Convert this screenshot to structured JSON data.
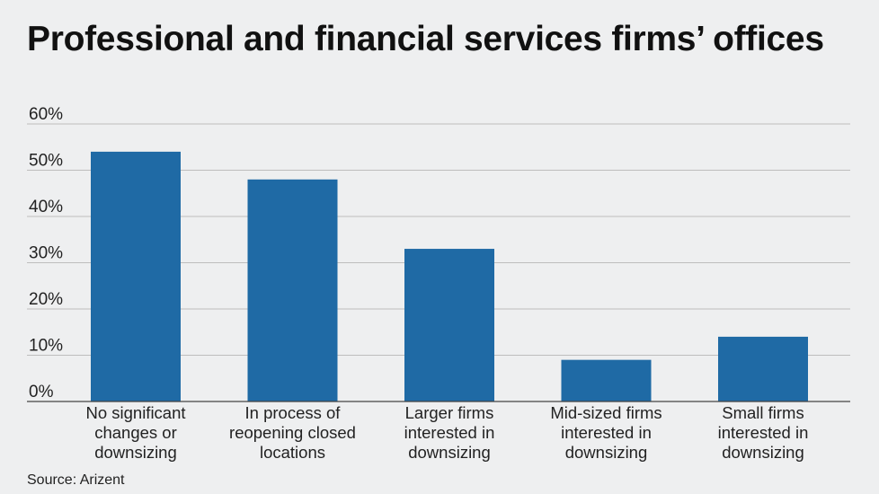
{
  "title": "Professional and financial services firms’ offices",
  "source": "Source: Arizent",
  "colors": {
    "bar": "#1f6aa5",
    "grid": "#bdbdbd",
    "background": "#eeeff0"
  },
  "chart_data": {
    "type": "bar",
    "title": "Professional and financial services firms’ offices",
    "categories": [
      [
        "No significant",
        "changes or",
        "downsizing"
      ],
      [
        "In process of",
        "reopening closed",
        "locations"
      ],
      [
        "Larger firms",
        "interested in",
        "downsizing"
      ],
      [
        "Mid-sized firms",
        "interested in",
        "downsizing"
      ],
      [
        "Small firms",
        "interested in",
        "downsizing"
      ]
    ],
    "values": [
      54,
      48,
      33,
      9,
      14
    ],
    "unit": "%",
    "ylim": [
      0,
      60
    ],
    "yticks": [
      0,
      10,
      20,
      30,
      40,
      50,
      60
    ],
    "ytick_labels": [
      "0%",
      "10%",
      "20%",
      "30%",
      "40%",
      "50%",
      "60%"
    ],
    "grid": true,
    "legend": "none",
    "xlabel": "",
    "ylabel": ""
  }
}
